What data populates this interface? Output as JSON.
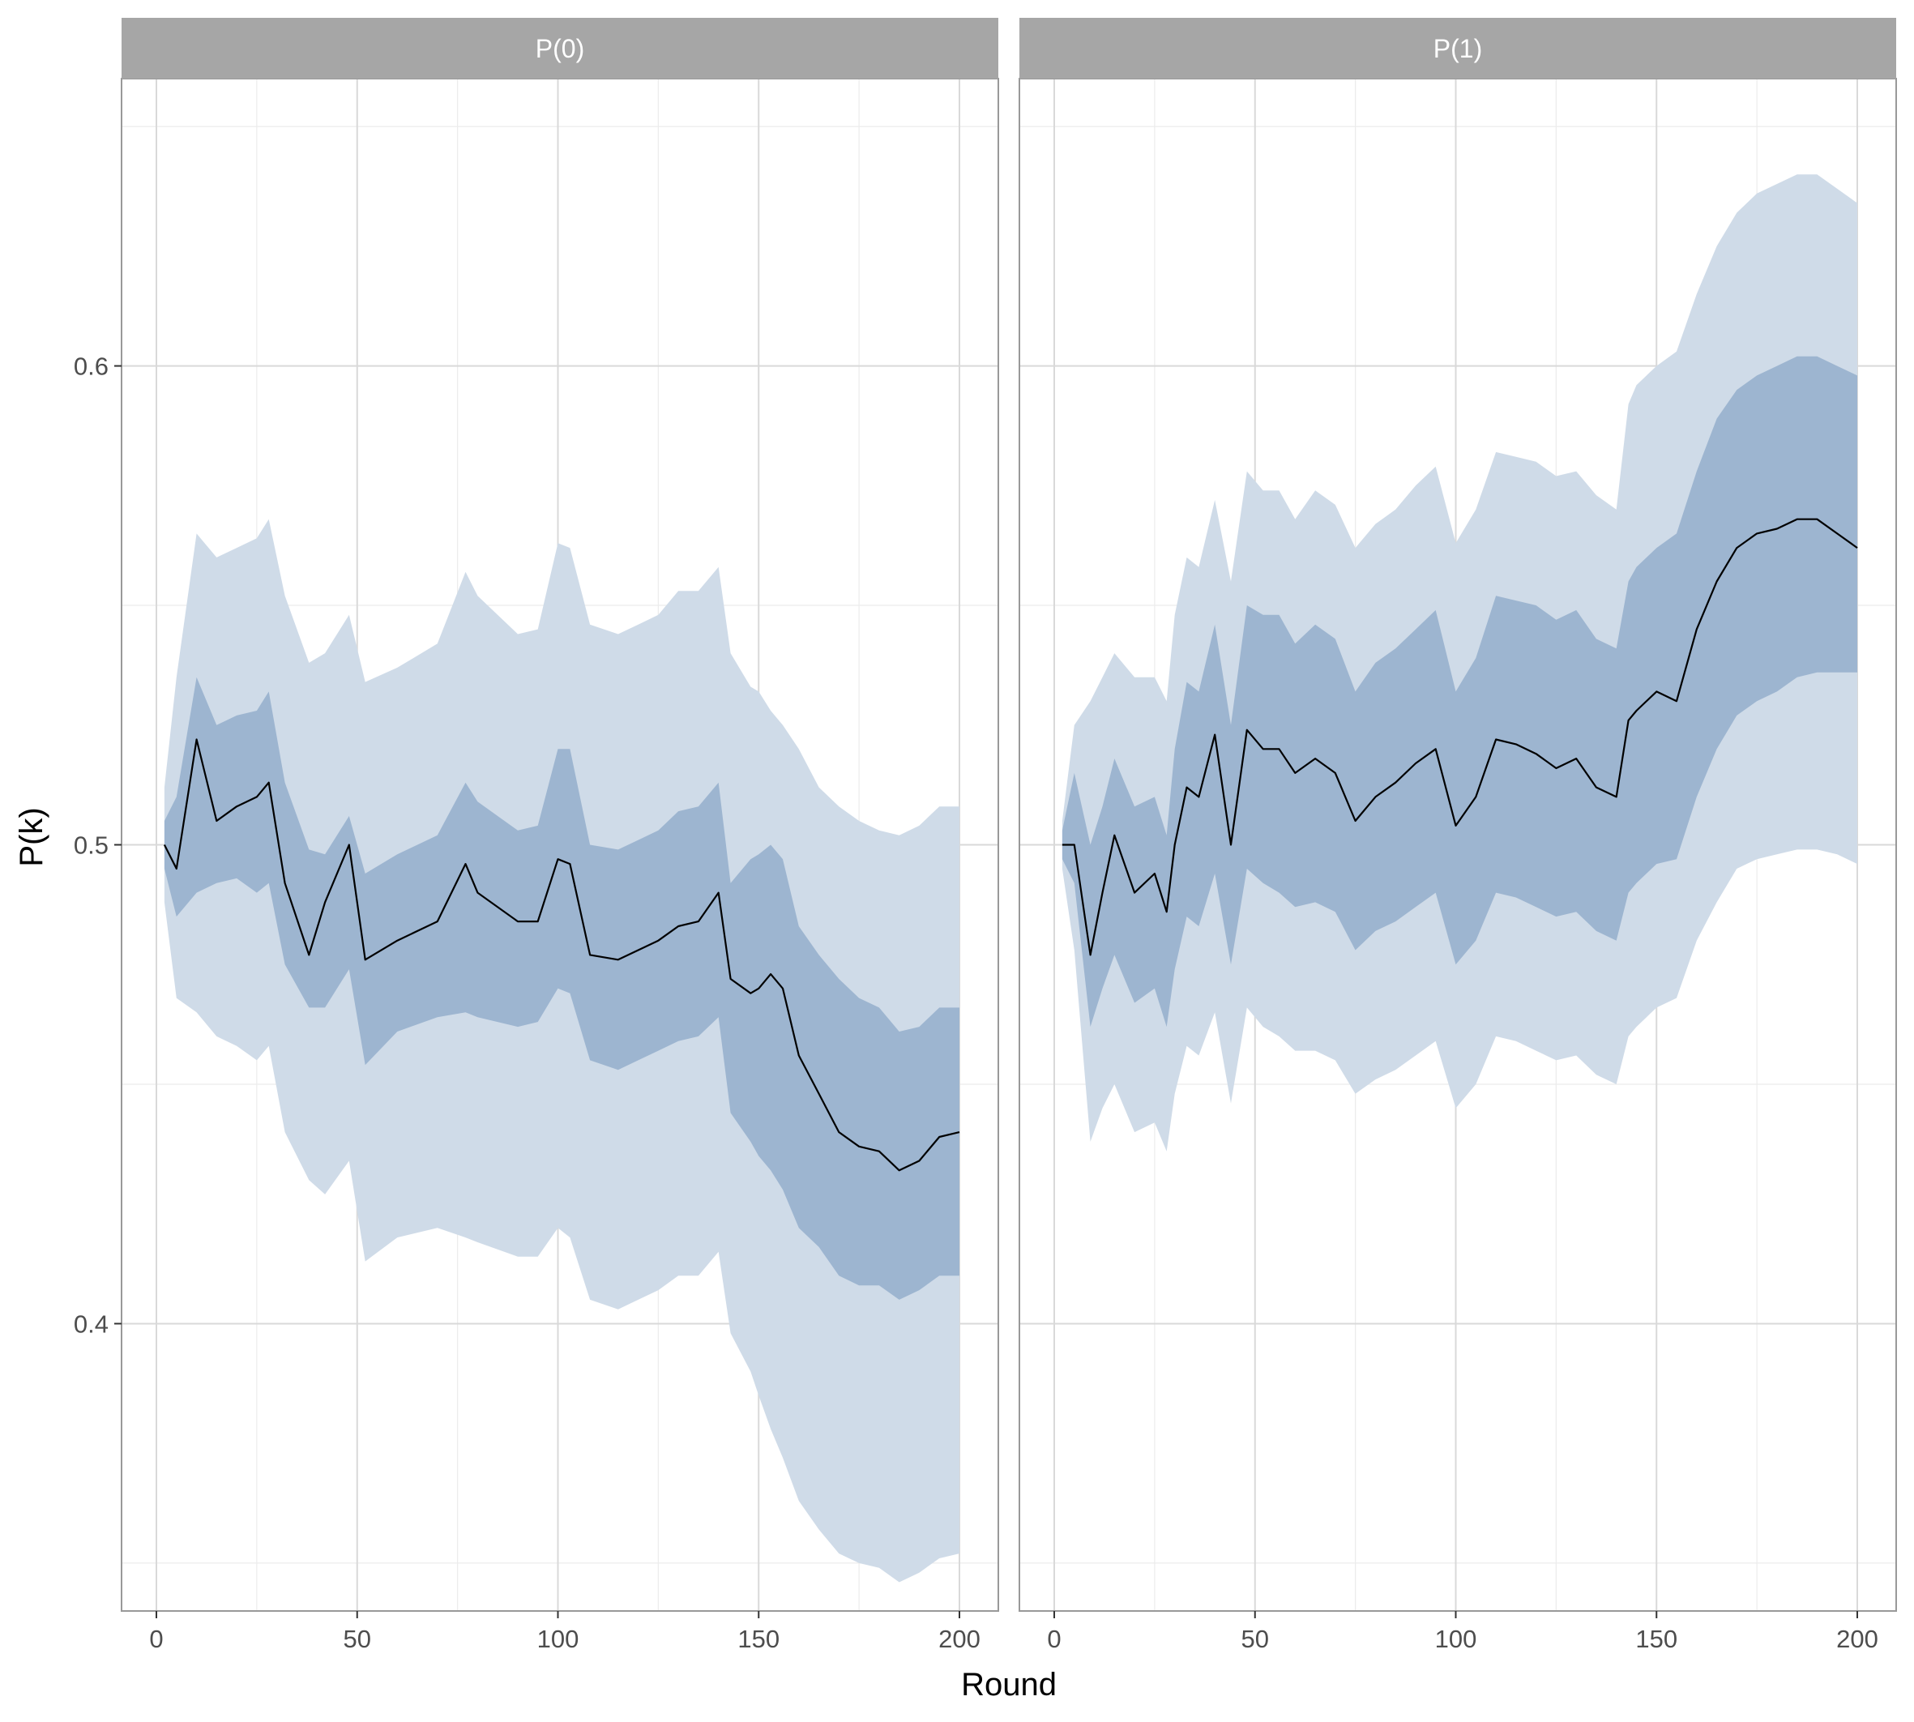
{
  "chart_data": {
    "type": "line",
    "xlabel": "Round",
    "ylabel": "P(k)",
    "xlim": [
      0,
      200
    ],
    "ylim": [
      0.34,
      0.66
    ],
    "x_ticks": [
      0,
      50,
      100,
      150,
      200
    ],
    "y_ticks": [
      0.4,
      0.5,
      0.6
    ],
    "y_tick_labels": [
      "0.4",
      "0.5",
      "0.6"
    ],
    "grid": true,
    "legend": "none",
    "colors": {
      "line": "#000000",
      "band_inner": "#9db5d0",
      "band_outer": "#cfdbe8",
      "strip_fill": "#a6a6a6",
      "strip_text": "#ffffff",
      "grid_major": "#d9d9d9",
      "grid_minor": "#ececec",
      "panel_border": "#999999"
    },
    "panels": [
      {
        "label": "P(0)",
        "series": [
          {
            "x": [
              2,
              5,
              10,
              15,
              20,
              25,
              28,
              32,
              38,
              42,
              48,
              52,
              60,
              70,
              77,
              80,
              90,
              95,
              100,
              103,
              108,
              115,
              120,
              125,
              130,
              135,
              140,
              143,
              148,
              150,
              153,
              156,
              160,
              165,
              170,
              175,
              180,
              185,
              190,
              195,
              200
            ],
            "mean": [
              0.5,
              0.495,
              0.522,
              0.505,
              0.508,
              0.51,
              0.513,
              0.492,
              0.477,
              0.488,
              0.5,
              0.476,
              0.48,
              0.484,
              0.496,
              0.49,
              0.484,
              0.484,
              0.497,
              0.496,
              0.477,
              0.476,
              0.478,
              0.48,
              0.483,
              0.484,
              0.49,
              0.472,
              0.469,
              0.47,
              0.473,
              0.47,
              0.456,
              0.448,
              0.44,
              0.437,
              0.436,
              0.432,
              0.434,
              0.439,
              0.44
            ],
            "inner_lower": [
              0.495,
              0.485,
              0.49,
              0.492,
              0.493,
              0.49,
              0.492,
              0.475,
              0.466,
              0.466,
              0.474,
              0.454,
              0.461,
              0.464,
              0.465,
              0.464,
              0.462,
              0.463,
              0.47,
              0.469,
              0.455,
              0.453,
              0.455,
              0.457,
              0.459,
              0.46,
              0.464,
              0.444,
              0.438,
              0.435,
              0.432,
              0.428,
              0.42,
              0.416,
              0.41,
              0.408,
              0.408,
              0.405,
              0.407,
              0.41,
              0.41
            ],
            "inner_upper": [
              0.505,
              0.51,
              0.535,
              0.525,
              0.527,
              0.528,
              0.532,
              0.513,
              0.499,
              0.498,
              0.506,
              0.494,
              0.498,
              0.502,
              0.513,
              0.509,
              0.503,
              0.504,
              0.52,
              0.52,
              0.5,
              0.499,
              0.501,
              0.503,
              0.507,
              0.508,
              0.513,
              0.492,
              0.497,
              0.498,
              0.5,
              0.497,
              0.483,
              0.477,
              0.472,
              0.468,
              0.466,
              0.461,
              0.462,
              0.466,
              0.466
            ],
            "outer_lower": [
              0.488,
              0.468,
              0.465,
              0.46,
              0.458,
              0.455,
              0.458,
              0.44,
              0.43,
              0.427,
              0.434,
              0.413,
              0.418,
              0.42,
              0.418,
              0.417,
              0.414,
              0.414,
              0.42,
              0.418,
              0.405,
              0.403,
              0.405,
              0.407,
              0.41,
              0.41,
              0.415,
              0.398,
              0.39,
              0.385,
              0.378,
              0.372,
              0.363,
              0.357,
              0.352,
              0.35,
              0.349,
              0.346,
              0.348,
              0.351,
              0.352
            ],
            "outer_upper": [
              0.512,
              0.535,
              0.565,
              0.56,
              0.562,
              0.564,
              0.568,
              0.552,
              0.538,
              0.54,
              0.548,
              0.534,
              0.537,
              0.542,
              0.557,
              0.552,
              0.544,
              0.545,
              0.563,
              0.562,
              0.546,
              0.544,
              0.546,
              0.548,
              0.553,
              0.553,
              0.558,
              0.54,
              0.533,
              0.532,
              0.528,
              0.525,
              0.52,
              0.512,
              0.508,
              0.505,
              0.503,
              0.502,
              0.504,
              0.508,
              0.508
            ]
          }
        ]
      },
      {
        "label": "P(1)",
        "series": [
          {
            "x": [
              2,
              5,
              9,
              12,
              15,
              20,
              25,
              28,
              30,
              33,
              36,
              40,
              44,
              48,
              52,
              56,
              60,
              65,
              70,
              75,
              80,
              85,
              90,
              95,
              100,
              105,
              110,
              115,
              120,
              125,
              130,
              135,
              140,
              143,
              145,
              150,
              155,
              160,
              165,
              170,
              175,
              180,
              185,
              190,
              195,
              200
            ],
            "mean": [
              0.5,
              0.5,
              0.477,
              0.49,
              0.502,
              0.49,
              0.494,
              0.486,
              0.5,
              0.512,
              0.51,
              0.523,
              0.5,
              0.524,
              0.52,
              0.52,
              0.515,
              0.518,
              0.515,
              0.505,
              0.51,
              0.513,
              0.517,
              0.52,
              0.504,
              0.51,
              0.522,
              0.521,
              0.519,
              0.516,
              0.518,
              0.512,
              0.51,
              0.526,
              0.528,
              0.532,
              0.53,
              0.545,
              0.555,
              0.562,
              0.565,
              0.566,
              0.568,
              0.568,
              0.565,
              0.562
            ],
            "inner_lower": [
              0.497,
              0.492,
              0.462,
              0.47,
              0.477,
              0.467,
              0.47,
              0.462,
              0.474,
              0.485,
              0.483,
              0.494,
              0.475,
              0.495,
              0.492,
              0.49,
              0.487,
              0.488,
              0.486,
              0.478,
              0.482,
              0.484,
              0.487,
              0.49,
              0.475,
              0.48,
              0.49,
              0.489,
              0.487,
              0.485,
              0.486,
              0.482,
              0.48,
              0.49,
              0.492,
              0.496,
              0.497,
              0.51,
              0.52,
              0.527,
              0.53,
              0.532,
              0.535,
              0.536,
              0.536,
              0.536
            ],
            "inner_upper": [
              0.503,
              0.515,
              0.5,
              0.508,
              0.518,
              0.508,
              0.51,
              0.502,
              0.52,
              0.534,
              0.532,
              0.546,
              0.525,
              0.55,
              0.548,
              0.548,
              0.542,
              0.546,
              0.543,
              0.532,
              0.538,
              0.541,
              0.545,
              0.549,
              0.532,
              0.539,
              0.552,
              0.551,
              0.55,
              0.547,
              0.549,
              0.543,
              0.541,
              0.555,
              0.558,
              0.562,
              0.565,
              0.578,
              0.589,
              0.595,
              0.598,
              0.6,
              0.602,
              0.602,
              0.6,
              0.598
            ],
            "outer_lower": [
              0.495,
              0.478,
              0.438,
              0.445,
              0.45,
              0.44,
              0.442,
              0.436,
              0.448,
              0.458,
              0.456,
              0.465,
              0.446,
              0.466,
              0.462,
              0.46,
              0.457,
              0.457,
              0.455,
              0.448,
              0.451,
              0.453,
              0.456,
              0.459,
              0.445,
              0.45,
              0.46,
              0.459,
              0.457,
              0.455,
              0.456,
              0.452,
              0.45,
              0.46,
              0.462,
              0.466,
              0.468,
              0.48,
              0.488,
              0.495,
              0.497,
              0.498,
              0.499,
              0.499,
              0.498,
              0.496
            ],
            "outer_upper": [
              0.505,
              0.525,
              0.53,
              0.535,
              0.54,
              0.535,
              0.535,
              0.53,
              0.548,
              0.56,
              0.558,
              0.572,
              0.555,
              0.578,
              0.574,
              0.574,
              0.568,
              0.574,
              0.571,
              0.562,
              0.567,
              0.57,
              0.575,
              0.579,
              0.563,
              0.57,
              0.582,
              0.581,
              0.58,
              0.577,
              0.578,
              0.573,
              0.57,
              0.592,
              0.596,
              0.6,
              0.603,
              0.615,
              0.625,
              0.632,
              0.636,
              0.638,
              0.64,
              0.64,
              0.637,
              0.634
            ]
          }
        ]
      }
    ]
  }
}
